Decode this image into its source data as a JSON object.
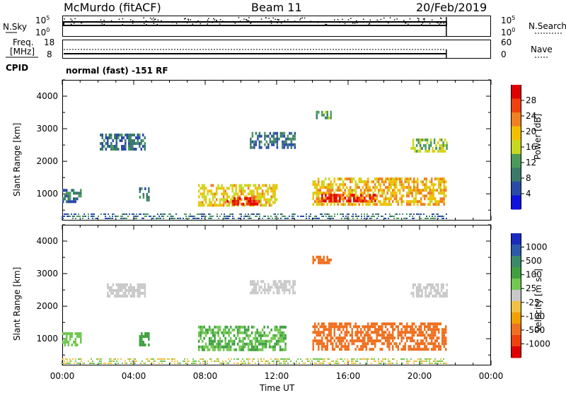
{
  "header": {
    "station": "McMurdo (fitACF)",
    "beam": "Beam 11",
    "date": "20/Feb/2019"
  },
  "top_panels": {
    "nsky": {
      "left_label": "N.Sky",
      "left_ticks": [
        "10^5",
        "10^0"
      ],
      "right_ticks": [
        "10^5",
        "10^0"
      ],
      "right_label": "N.Search"
    },
    "freq": {
      "left_label_1": "Freq.",
      "left_label_2": "[MHz]",
      "left_ticks": [
        "18",
        "8"
      ],
      "right_ticks": [
        "60",
        "0"
      ],
      "right_label": "Nave"
    },
    "cpid": {
      "label": "CPID",
      "value": "normal (fast) -151 RF"
    }
  },
  "colors": {
    "power_scale": [
      "#1010e0",
      "#2a4aa8",
      "#3a7a6a",
      "#4a9a5a",
      "#c8d820",
      "#f0c000",
      "#f08020",
      "#f04010",
      "#e00000"
    ],
    "velocity_scale": [
      "#e00000",
      "#f04010",
      "#f07020",
      "#f0a000",
      "#f0c040",
      "#c8c8c8",
      "#70c850",
      "#40a040",
      "#3a8a6a",
      "#2a5aa8",
      "#1a2ac0"
    ]
  },
  "chart_data": [
    {
      "type": "heatmap",
      "title": "",
      "xlabel": "",
      "ylabel": "Slant Range [km]",
      "xlim": [
        0,
        24
      ],
      "ylim": [
        180,
        4500
      ],
      "yticks": [
        "1000",
        "2000",
        "3000",
        "4000"
      ],
      "colorbar": {
        "label": "Power [dB]",
        "ticks": [
          "28",
          "24",
          "20",
          "16",
          "12",
          "8",
          "4"
        ]
      },
      "regions": [
        {
          "t0": 2.1,
          "t1": 4.6,
          "r0": 2350,
          "r1": 2850,
          "level": 8
        },
        {
          "t0": 0.0,
          "t1": 1.0,
          "r0": 800,
          "r1": 1150,
          "level": 8
        },
        {
          "t0": 4.3,
          "t1": 4.8,
          "r0": 800,
          "r1": 1200,
          "level": 10
        },
        {
          "t0": 7.6,
          "t1": 12.0,
          "r0": 650,
          "r1": 1300,
          "level": 18
        },
        {
          "t0": 9.2,
          "t1": 11.0,
          "r0": 650,
          "r1": 900,
          "level": 28
        },
        {
          "t0": 10.5,
          "t1": 13.0,
          "r0": 2400,
          "r1": 2900,
          "level": 8
        },
        {
          "t0": 14.2,
          "t1": 15.0,
          "r0": 3300,
          "r1": 3550,
          "level": 12
        },
        {
          "t0": 14.0,
          "t1": 21.5,
          "r0": 700,
          "r1": 1500,
          "level": 20
        },
        {
          "t0": 14.5,
          "t1": 17.5,
          "r0": 800,
          "r1": 1000,
          "level": 28
        },
        {
          "t0": 19.5,
          "t1": 21.5,
          "r0": 2300,
          "r1": 2700,
          "level": 14
        }
      ]
    },
    {
      "type": "heatmap",
      "title": "",
      "xlabel": "Time UT",
      "ylabel": "Slant Range [km]",
      "xlim": [
        0,
        24
      ],
      "ylim": [
        180,
        4500
      ],
      "xticks": [
        "00:00",
        "04:00",
        "08:00",
        "12:00",
        "16:00",
        "20:00",
        "00:00"
      ],
      "yticks": [
        "1000",
        "2000",
        "3000",
        "4000"
      ],
      "colorbar": {
        "label": "Velocity [m s^-1]",
        "ticks": [
          "1000",
          "500",
          "100",
          "25",
          "-25",
          "-100",
          "-500",
          "-1000"
        ]
      },
      "regions": [
        {
          "t0": 2.5,
          "t1": 4.6,
          "r0": 2350,
          "r1": 2700,
          "level": 0
        },
        {
          "t0": 0.0,
          "t1": 1.0,
          "r0": 800,
          "r1": 1200,
          "level": 60
        },
        {
          "t0": 4.3,
          "t1": 4.8,
          "r0": 800,
          "r1": 1200,
          "level": 200
        },
        {
          "t0": 7.6,
          "t1": 12.5,
          "r0": 650,
          "r1": 1400,
          "level": 100
        },
        {
          "t0": 10.5,
          "t1": 13.0,
          "r0": 2400,
          "r1": 2800,
          "level": 0
        },
        {
          "t0": 14.0,
          "t1": 15.0,
          "r0": 3300,
          "r1": 3550,
          "level": -200
        },
        {
          "t0": 14.0,
          "t1": 21.5,
          "r0": 650,
          "r1": 1500,
          "level": -200
        },
        {
          "t0": 19.5,
          "t1": 21.5,
          "r0": 2300,
          "r1": 2700,
          "level": 0
        }
      ]
    }
  ]
}
